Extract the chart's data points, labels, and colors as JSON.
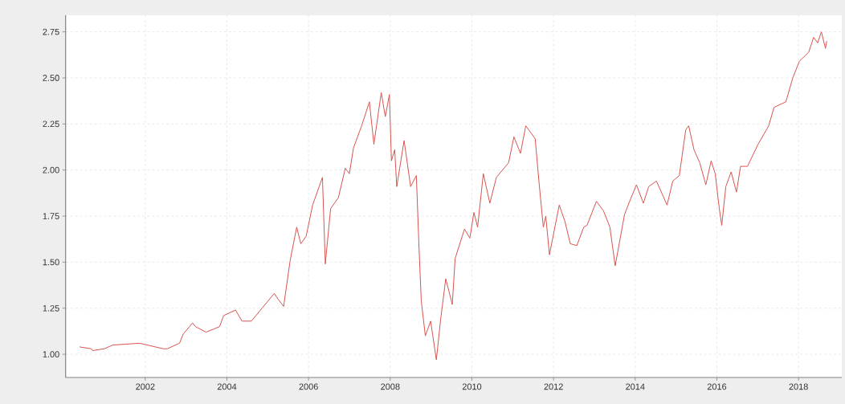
{
  "chart_data": {
    "type": "line",
    "x": [
      2000.39,
      2000.68,
      2000.71,
      2001.0,
      2001.2,
      2001.86,
      2002.44,
      2002.54,
      2002.84,
      2002.93,
      2003.16,
      2003.23,
      2003.49,
      2003.82,
      2003.92,
      2004.21,
      2004.37,
      2004.6,
      2004.86,
      2005.16,
      2005.25,
      2005.39,
      2005.55,
      2005.71,
      2005.81,
      2005.94,
      2006.1,
      2006.34,
      2006.41,
      2006.54,
      2006.73,
      2006.9,
      2007.0,
      2007.1,
      2007.3,
      2007.49,
      2007.6,
      2007.78,
      2007.88,
      2007.98,
      2008.03,
      2008.11,
      2008.16,
      2008.34,
      2008.5,
      2008.64,
      2008.7,
      2008.76,
      2008.86,
      2008.99,
      2009.13,
      2009.23,
      2009.36,
      2009.52,
      2009.59,
      2009.82,
      2009.95,
      2010.05,
      2010.14,
      2010.28,
      2010.44,
      2010.6,
      2010.9,
      2011.03,
      2011.19,
      2011.32,
      2011.55,
      2011.65,
      2011.75,
      2011.81,
      2011.9,
      2012.14,
      2012.28,
      2012.41,
      2012.57,
      2012.74,
      2012.82,
      2013.05,
      2013.22,
      2013.38,
      2013.51,
      2013.74,
      2013.9,
      2014.03,
      2014.2,
      2014.33,
      2014.52,
      2014.78,
      2014.92,
      2015.08,
      2015.24,
      2015.31,
      2015.44,
      2015.58,
      2015.73,
      2015.86,
      2015.96,
      2016.06,
      2016.12,
      2016.22,
      2016.35,
      2016.48,
      2016.58,
      2016.75,
      2017.01,
      2017.27,
      2017.4,
      2017.69,
      2017.86,
      2018.02,
      2018.25,
      2018.37,
      2018.47,
      2018.56,
      2018.66,
      2018.69
    ],
    "series": [
      {
        "color": "#d9534f",
        "values": [
          1.04,
          1.03,
          1.02,
          1.03,
          1.05,
          1.06,
          1.03,
          1.03,
          1.06,
          1.11,
          1.17,
          1.15,
          1.12,
          1.15,
          1.21,
          1.24,
          1.18,
          1.18,
          1.25,
          1.33,
          1.3,
          1.26,
          1.51,
          1.69,
          1.6,
          1.64,
          1.81,
          1.96,
          1.49,
          1.79,
          1.85,
          2.01,
          1.98,
          2.12,
          2.24,
          2.37,
          2.14,
          2.42,
          2.29,
          2.41,
          2.05,
          2.11,
          1.91,
          2.16,
          1.91,
          1.97,
          1.61,
          1.29,
          1.1,
          1.18,
          0.97,
          1.18,
          1.41,
          1.27,
          1.52,
          1.68,
          1.63,
          1.77,
          1.69,
          1.98,
          1.82,
          1.96,
          2.04,
          2.18,
          2.09,
          2.24,
          2.17,
          1.92,
          1.69,
          1.75,
          1.54,
          1.81,
          1.72,
          1.6,
          1.59,
          1.69,
          1.7,
          1.83,
          1.78,
          1.69,
          1.48,
          1.76,
          1.85,
          1.92,
          1.82,
          1.91,
          1.94,
          1.81,
          1.94,
          1.97,
          2.22,
          2.24,
          2.11,
          2.04,
          1.92,
          2.05,
          1.98,
          1.79,
          1.7,
          1.91,
          1.99,
          1.88,
          2.02,
          2.02,
          2.14,
          2.24,
          2.34,
          2.37,
          2.5,
          2.59,
          2.64,
          2.72,
          2.69,
          2.75,
          2.66,
          2.7
        ]
      }
    ],
    "xlim": [
      2000.05,
      2019.06
    ],
    "ylim": [
      0.874,
      2.84
    ],
    "xticks": [
      2002,
      2004,
      2006,
      2008,
      2010,
      2012,
      2014,
      2016,
      2018
    ],
    "yticks": [
      {
        "value": 1.0,
        "label": "1.00"
      },
      {
        "value": 1.25,
        "label": "1.25"
      },
      {
        "value": 1.5,
        "label": "1.50"
      },
      {
        "value": 1.75,
        "label": "1.75"
      },
      {
        "value": 2.0,
        "label": "2.00"
      },
      {
        "value": 2.25,
        "label": "2.25"
      },
      {
        "value": 2.5,
        "label": "2.50"
      },
      {
        "value": 2.75,
        "label": "2.75"
      }
    ],
    "grid": true,
    "legend": false,
    "marker": "none",
    "line_style": "solid"
  }
}
